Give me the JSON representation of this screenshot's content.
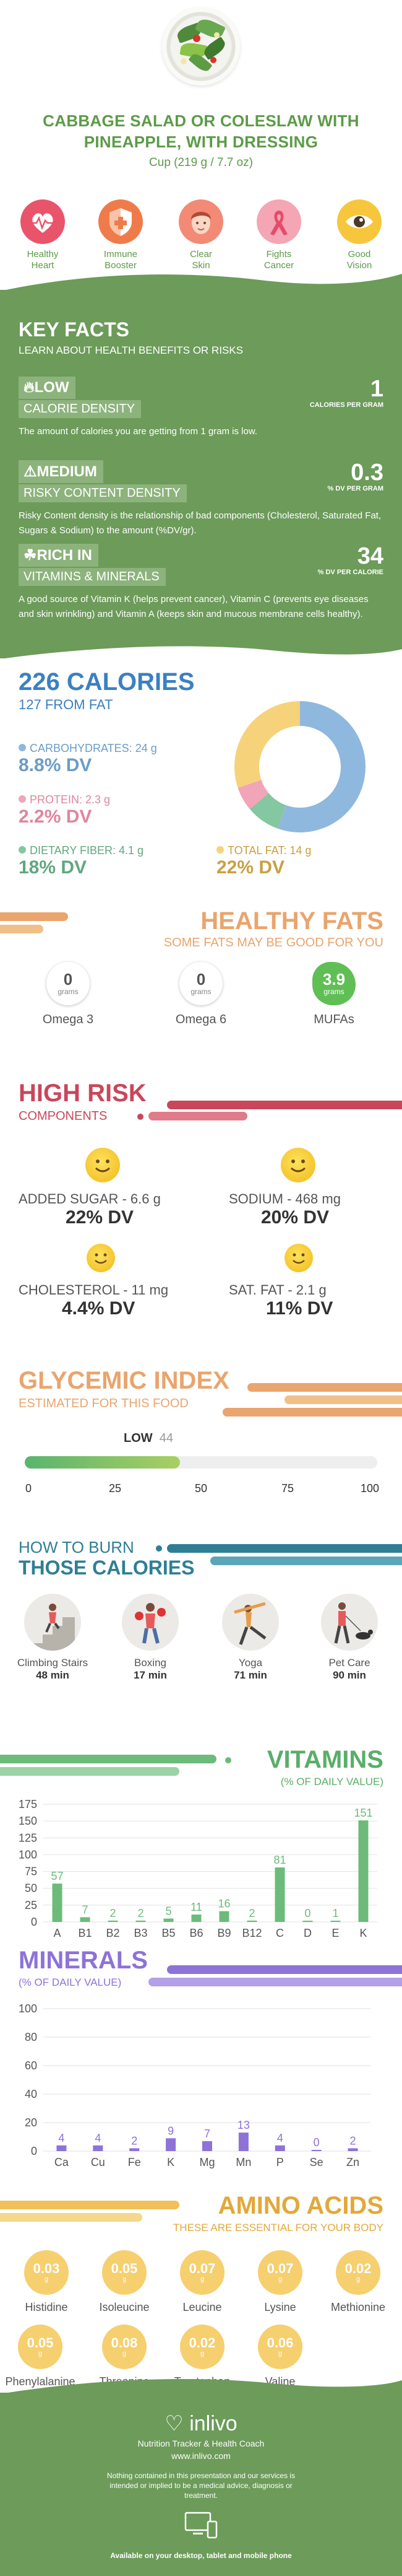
{
  "header": {
    "title_line1": "CABBAGE SALAD OR COLESLAW WITH",
    "title_line2": "PINEAPPLE, WITH DRESSING",
    "serving": "Cup (219 g / 7.7 oz)"
  },
  "benefits": [
    {
      "label_l1": "Healthy",
      "label_l2": "Heart",
      "color": "#e9546b",
      "icon": "heart-pulse-icon"
    },
    {
      "label_l1": "Immune",
      "label_l2": "Booster",
      "color": "#f07b4a",
      "icon": "shield-icon"
    },
    {
      "label_l1": "Clear",
      "label_l2": "Skin",
      "color": "#f28a75",
      "icon": "face-icon"
    },
    {
      "label_l1": "Fights",
      "label_l2": "Cancer",
      "color": "#f4a6b5",
      "icon": "ribbon-icon"
    },
    {
      "label_l1": "Good",
      "label_l2": "Vision",
      "color": "#f6c73c",
      "icon": "eye-icon"
    }
  ],
  "key_facts": {
    "title": "KEY FACTS",
    "subtitle": "LEARN ABOUT HEALTH BENEFITS OR RISKS",
    "items": [
      {
        "level": "LOW",
        "name": "CALORIE DENSITY",
        "value": "1",
        "unit": "CALORIES PER GRAM",
        "desc": "The amount of calories you are getting from 1 gram is low."
      },
      {
        "level": "MEDIUM",
        "name": "RISKY CONTENT DENSITY",
        "value": "0.3",
        "unit": "% DV PER GRAM",
        "desc": "Risky Content density is the relationship of bad components (Cholesterol, Saturated Fat, Sugars & Sodium) to the amount (%DV/gr)."
      },
      {
        "level": "RICH IN",
        "name": "VITAMINS & MINERALS",
        "value": "34",
        "unit": "% DV PER CALORIE",
        "desc": "A good source of Vitamin K (helps prevent cancer), Vitamin C (prevents eye diseases and skin wrinkling) and Vitamin A (keeps skin and mucous membrane cells healthy)."
      }
    ]
  },
  "calories": {
    "title": "226 CALORIES",
    "subtitle": "127 FROM FAT",
    "carbs": {
      "label": "CARBOHYDRATES: 24 g",
      "dv": "8.8% DV",
      "color": "#8fb8df"
    },
    "protein": {
      "label": "PROTEIN: 2.3 g",
      "dv": "2.2% DV",
      "color": "#f2a4b8"
    },
    "fiber": {
      "label": "DIETARY FIBER: 4.1 g",
      "dv": "18% DV",
      "color": "#84c7a0"
    },
    "fat": {
      "label": "TOTAL FAT: 14 g",
      "dv": "22% DV",
      "color": "#f6d27a"
    }
  },
  "healthy_fats": {
    "title": "HEALTHY FATS",
    "subtitle": "SOME FATS MAY BE GOOD FOR YOU",
    "items": [
      {
        "value": "0",
        "unit": "grams",
        "name": "Omega 3"
      },
      {
        "value": "0",
        "unit": "grams",
        "name": "Omega 6"
      },
      {
        "value": "3.9",
        "unit": "grams",
        "name": "MUFAs"
      }
    ]
  },
  "high_risk": {
    "title": "HIGH RISK",
    "subtitle": "COMPONENTS",
    "items": [
      {
        "label": "ADDED SUGAR - 6.6 g",
        "dv": "22% DV"
      },
      {
        "label": "SODIUM - 468 mg",
        "dv": "20% DV"
      },
      {
        "label": "CHOLESTEROL - 11 mg",
        "dv": "4.4% DV"
      },
      {
        "label": "SAT. FAT - 2.1 g",
        "dv": "11% DV"
      }
    ]
  },
  "glycemic": {
    "title": "GLYCEMIC INDEX",
    "subtitle": "ESTIMATED FOR THIS FOOD",
    "level": "LOW",
    "value": "44",
    "value_num": 44,
    "ticks": [
      "0",
      "25",
      "50",
      "75",
      "100"
    ]
  },
  "burn": {
    "title_l1": "HOW TO BURN",
    "title_l2": "THOSE CALORIES",
    "items": [
      {
        "name": "Climbing Stairs",
        "minutes": "48 min",
        "icon": "stairs-icon"
      },
      {
        "name": "Boxing",
        "minutes": "17 min",
        "icon": "boxing-icon"
      },
      {
        "name": "Yoga",
        "minutes": "71 min",
        "icon": "yoga-icon"
      },
      {
        "name": "Pet Care",
        "minutes": "90 min",
        "icon": "pet-icon"
      }
    ]
  },
  "chart_data": [
    {
      "type": "bar",
      "title": "VITAMINS",
      "subtitle": "(% OF DAILY VALUE)",
      "categories": [
        "A",
        "B1",
        "B2",
        "B3",
        "B5",
        "B6",
        "B9",
        "B12",
        "C",
        "D",
        "E",
        "K"
      ],
      "values": [
        57,
        7,
        2,
        2,
        5,
        11,
        16,
        2,
        81,
        0,
        1,
        151
      ],
      "yticks": [
        "0",
        "25",
        "50",
        "75",
        "100",
        "125",
        "150",
        "175"
      ],
      "ylim": [
        0,
        175
      ],
      "color": "#6cbb7a"
    },
    {
      "type": "bar",
      "title": "MINERALS",
      "subtitle": "(% OF DAILY VALUE)",
      "categories": [
        "Ca",
        "Cu",
        "Fe",
        "K",
        "Mg",
        "Mn",
        "P",
        "Se",
        "Zn"
      ],
      "values": [
        4,
        4,
        2,
        9,
        7,
        13,
        4,
        0,
        2
      ],
      "yticks": [
        "0",
        "20",
        "40",
        "60",
        "80",
        "100"
      ],
      "ylim": [
        0,
        100
      ],
      "color": "#8e72d8"
    }
  ],
  "amino": {
    "title": "AMINO ACIDS",
    "subtitle": "THESE ARE ESSENTIAL FOR YOUR BODY",
    "items": [
      {
        "value": "0.03",
        "unit": "g",
        "name": "Histidine"
      },
      {
        "value": "0.05",
        "unit": "g",
        "name": "Isoleucine"
      },
      {
        "value": "0.07",
        "unit": "g",
        "name": "Leucine"
      },
      {
        "value": "0.07",
        "unit": "g",
        "name": "Lysine"
      },
      {
        "value": "0.02",
        "unit": "g",
        "name": "Methionine"
      },
      {
        "value": "0.05",
        "unit": "g",
        "name": "Phenylalanine"
      },
      {
        "value": "0.08",
        "unit": "g",
        "name": "Threonine"
      },
      {
        "value": "0.02",
        "unit": "g",
        "name": "Tryptophan"
      },
      {
        "value": "0.06",
        "unit": "g",
        "name": "Valine"
      }
    ]
  },
  "footer": {
    "brand": "inlivo",
    "tagline": "Nutrition Tracker & Health Coach",
    "url": "www.inlivo.com",
    "disclaimer": "Nothing contained in this presentation and our services is intended or implied to be a medical advice, diagnosis or treatment.",
    "available": "Available on your desktop, tablet and mobile phone"
  }
}
